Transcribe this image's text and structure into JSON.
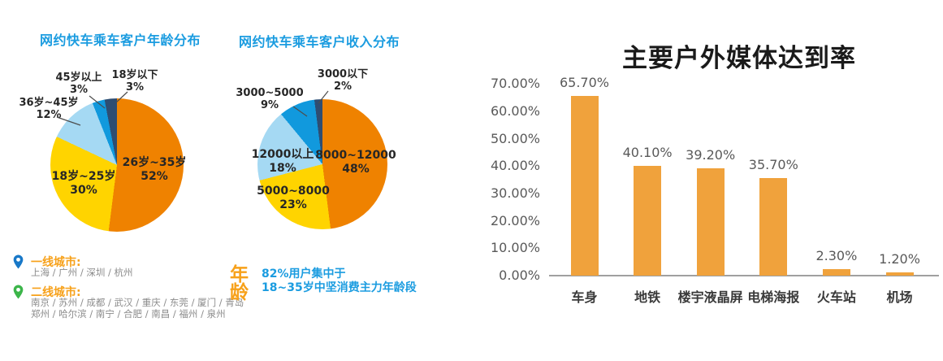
{
  "colors": {
    "title_blue": "#1B9CE0",
    "pie_orange": "#EF8200",
    "pie_yellow": "#FFD400",
    "pie_light_blue": "#A5D9F3",
    "pie_mid_blue": "#1199DD",
    "pie_navy": "#2E4D72",
    "bar_orange": "#F0A23C",
    "accent_orange": "#F7A11A",
    "city_gray": "#8C8C8C",
    "axis_gray": "#595959"
  },
  "chart_data": [
    {
      "type": "pie",
      "title": "网约快车乘车客户年龄分布",
      "slices": [
        {
          "label": "26岁~35岁",
          "pct": "52%",
          "value": 52,
          "color": "#EF8200"
        },
        {
          "label": "18岁~25岁",
          "pct": "30%",
          "value": 30,
          "color": "#FFD400"
        },
        {
          "label": "36岁~45岁",
          "pct": "12%",
          "value": 12,
          "color": "#A5D9F3"
        },
        {
          "label": "45岁以上",
          "pct": "3%",
          "value": 3,
          "color": "#1199DD"
        },
        {
          "label": "18岁以下",
          "pct": "3%",
          "value": 3,
          "color": "#2E4D72"
        }
      ],
      "start_angle": "12 o'clock, clockwise",
      "legend_position": "labels on/next to slices"
    },
    {
      "type": "pie",
      "title": "网约快车乘车客户收入分布",
      "slices": [
        {
          "label": "8000~12000",
          "pct": "48%",
          "value": 48,
          "color": "#EF8200"
        },
        {
          "label": "5000~8000",
          "pct": "23%",
          "value": 23,
          "color": "#FFD400"
        },
        {
          "label": "12000以上",
          "pct": "18%",
          "value": 18,
          "color": "#A5D9F3"
        },
        {
          "label": "3000~5000",
          "pct": "9%",
          "value": 9,
          "color": "#1199DD"
        },
        {
          "label": "3000以下",
          "pct": "2%",
          "value": 2,
          "color": "#2E4D72"
        }
      ],
      "start_angle": "12 o'clock, clockwise",
      "legend_position": "labels on/next to slices"
    },
    {
      "type": "bar",
      "title": "主要户外媒体达到率",
      "categories": [
        "车身",
        "地铁",
        "楼宇液晶屏",
        "电梯海报",
        "火车站",
        "机场"
      ],
      "values": [
        65.7,
        40.1,
        39.2,
        35.7,
        2.3,
        1.2
      ],
      "labels": [
        "65.70%",
        "40.10%",
        "39.20%",
        "35.70%",
        "2.30%",
        "1.20%"
      ],
      "yticks": [
        "0.00%",
        "10.00%",
        "20.00%",
        "30.00%",
        "40.00%",
        "50.00%",
        "60.00%",
        "70.00%"
      ],
      "ylim": [
        0,
        70
      ],
      "xlabel": "",
      "ylabel": "",
      "grid": false,
      "bar_color": "#F0A23C"
    }
  ],
  "cities": {
    "tier1": {
      "heading": "一线城市:",
      "list": "上海 / 广州 / 深圳 / 杭州",
      "pin_color": "#1878C8"
    },
    "tier2": {
      "heading": "二线城市:",
      "list": "南京 / 苏州 / 成都 / 武汉 / 重庆 / 东莞 / 厦门 / 青岛\n郑州 / 哈尔滨 / 南宁 / 合肥 / 南昌 / 福州 / 泉州",
      "pin_color": "#3CB54A"
    }
  },
  "age_note": {
    "side_label": "年龄",
    "line1": "82%用户集中于",
    "line2": "18~35岁中坚消费主力年龄段"
  }
}
